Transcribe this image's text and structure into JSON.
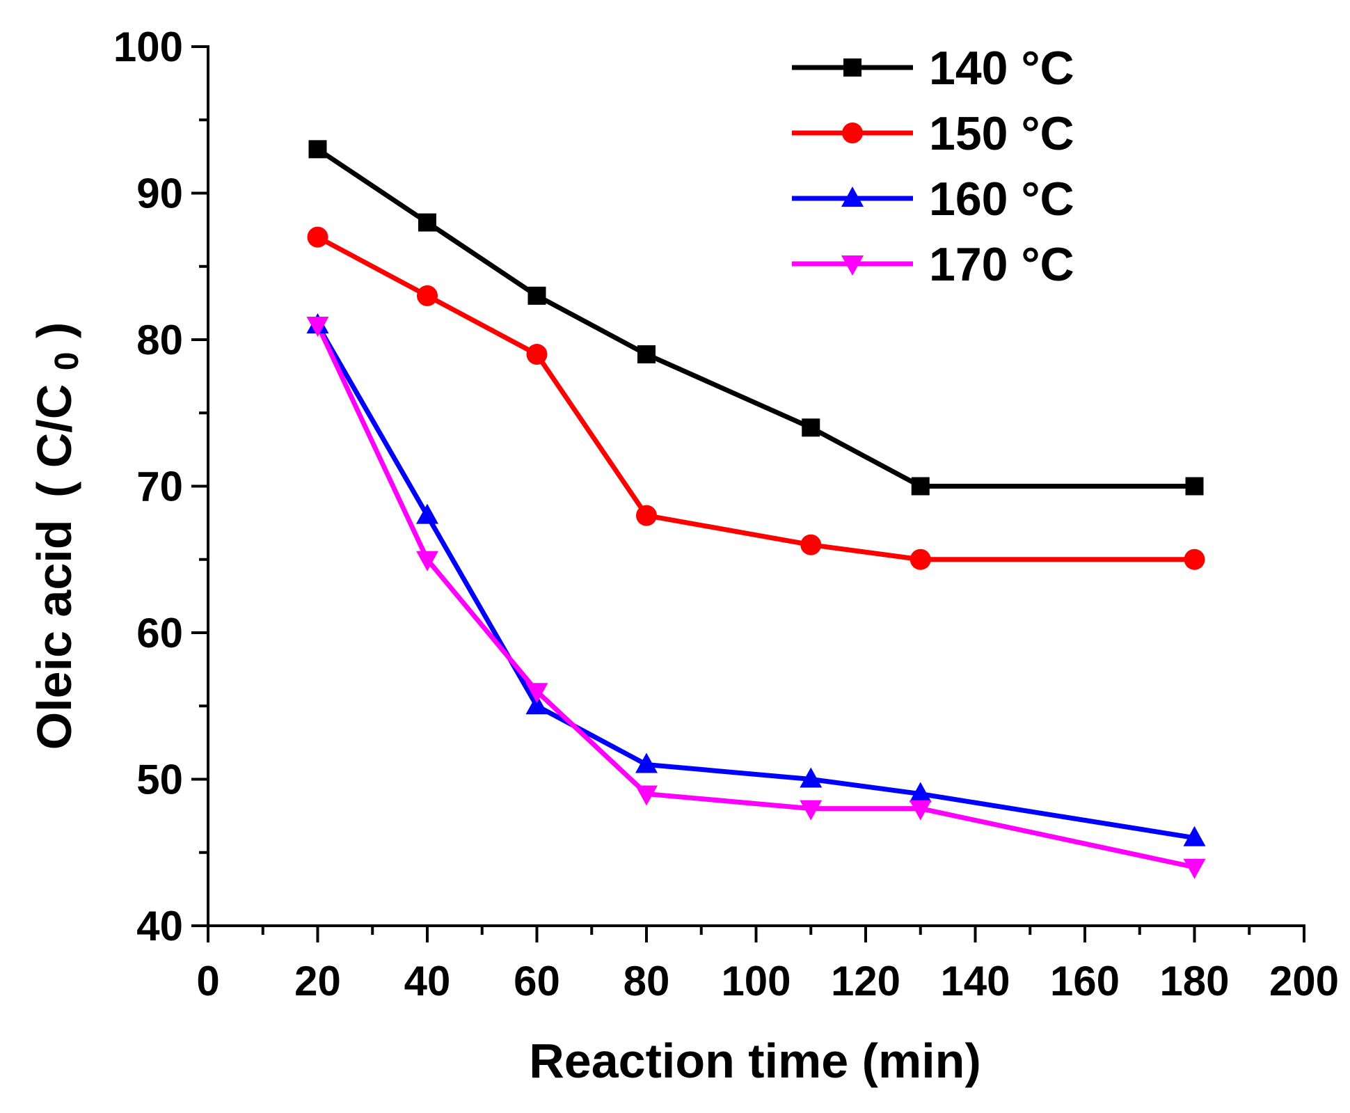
{
  "chart_data": {
    "type": "line",
    "xlabel": "Reaction time (min)",
    "ylabel_main": "Oleic acid",
    "ylabel_paren_open": "(",
    "ylabel_c": "C/C",
    "ylabel_sub": "0",
    "ylabel_paren_close": ")",
    "xlim": [
      0,
      200
    ],
    "ylim": [
      40,
      100
    ],
    "xticks": [
      0,
      20,
      40,
      60,
      80,
      100,
      120,
      140,
      160,
      180,
      200
    ],
    "yticks": [
      40,
      50,
      60,
      70,
      80,
      90,
      100
    ],
    "grid": false,
    "legend_position": "top-right",
    "x": [
      20,
      40,
      60,
      80,
      110,
      130,
      180
    ],
    "series": [
      {
        "name": "140 °C",
        "color": "#000000",
        "marker": "square",
        "values": [
          93,
          88,
          83,
          79,
          74,
          70,
          70
        ]
      },
      {
        "name": "150 °C",
        "color": "#ff0000",
        "marker": "circle",
        "values": [
          87,
          83,
          79,
          68,
          66,
          65,
          65
        ]
      },
      {
        "name": "160 °C",
        "color": "#0000ff",
        "marker": "triangle-up",
        "values": [
          81,
          68,
          55,
          51,
          50,
          49,
          46
        ]
      },
      {
        "name": "170 °C",
        "color": "#ff00ff",
        "marker": "triangle-down",
        "values": [
          81,
          65,
          56,
          49,
          48,
          48,
          44
        ]
      }
    ]
  }
}
